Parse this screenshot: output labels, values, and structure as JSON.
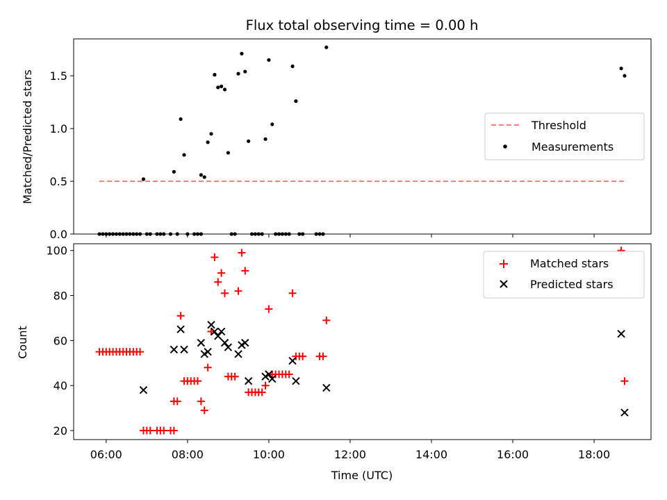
{
  "chart_data": [
    {
      "type": "scatter",
      "title": "Flux total observing time = 0.00 h",
      "xlabel": "",
      "ylabel": "Matched/Predicted stars",
      "xlim": [
        "05:12",
        "19:24"
      ],
      "ylim": [
        0,
        1.85
      ],
      "xticks": [
        "06:00",
        "08:00",
        "10:00",
        "12:00",
        "14:00",
        "16:00",
        "18:00"
      ],
      "yticks": [
        0.0,
        0.5,
        1.0,
        1.5
      ],
      "ytick_labels": [
        "0.0",
        "0.5",
        "1.0",
        "1.5"
      ],
      "legend_position": "center-right",
      "threshold": {
        "name": "Threshold",
        "value": 0.5,
        "x_range": [
          "05:50",
          "18:45"
        ],
        "color": "#ff7f7f",
        "style": "dashed"
      },
      "series": [
        {
          "name": "Measurements",
          "color": "#000000",
          "marker": "dot",
          "points": [
            [
              "06:55",
              0.52
            ],
            [
              "07:40",
              0.59
            ],
            [
              "07:50",
              1.09
            ],
            [
              "07:55",
              0.75
            ],
            [
              "08:20",
              0.56
            ],
            [
              "08:25",
              0.54
            ],
            [
              "08:30",
              0.87
            ],
            [
              "08:35",
              0.95
            ],
            [
              "08:40",
              1.51
            ],
            [
              "08:45",
              1.39
            ],
            [
              "08:50",
              1.4
            ],
            [
              "08:55",
              1.37
            ],
            [
              "09:00",
              0.77
            ],
            [
              "09:15",
              1.52
            ],
            [
              "09:20",
              1.71
            ],
            [
              "09:25",
              1.54
            ],
            [
              "09:30",
              0.88
            ],
            [
              "09:55",
              0.9
            ],
            [
              "10:00",
              1.65
            ],
            [
              "10:05",
              1.04
            ],
            [
              "10:35",
              1.59
            ],
            [
              "10:40",
              1.26
            ],
            [
              "11:25",
              1.77
            ],
            [
              "18:40",
              1.57
            ],
            [
              "18:45",
              1.5
            ],
            [
              "05:50",
              0
            ],
            [
              "05:55",
              0
            ],
            [
              "06:00",
              0
            ],
            [
              "06:05",
              0
            ],
            [
              "06:10",
              0
            ],
            [
              "06:15",
              0
            ],
            [
              "06:20",
              0
            ],
            [
              "06:25",
              0
            ],
            [
              "06:30",
              0
            ],
            [
              "06:35",
              0
            ],
            [
              "06:40",
              0
            ],
            [
              "06:45",
              0
            ],
            [
              "06:50",
              0
            ],
            [
              "07:00",
              0
            ],
            [
              "07:05",
              0
            ],
            [
              "07:15",
              0
            ],
            [
              "07:20",
              0
            ],
            [
              "07:25",
              0
            ],
            [
              "07:35",
              0
            ],
            [
              "07:45",
              0
            ],
            [
              "08:00",
              0
            ],
            [
              "08:10",
              0
            ],
            [
              "08:15",
              0
            ],
            [
              "08:20",
              0
            ],
            [
              "09:05",
              0
            ],
            [
              "09:10",
              0
            ],
            [
              "09:35",
              0
            ],
            [
              "09:40",
              0
            ],
            [
              "09:45",
              0
            ],
            [
              "09:50",
              0
            ],
            [
              "10:10",
              0
            ],
            [
              "10:15",
              0
            ],
            [
              "10:20",
              0
            ],
            [
              "10:25",
              0
            ],
            [
              "10:30",
              0
            ],
            [
              "10:45",
              0
            ],
            [
              "10:50",
              0
            ],
            [
              "11:10",
              0
            ],
            [
              "11:15",
              0
            ],
            [
              "11:20",
              0
            ]
          ]
        }
      ]
    },
    {
      "type": "scatter",
      "title": "",
      "xlabel": "Time (UTC)",
      "ylabel": "Count",
      "xlim": [
        "05:12",
        "19:24"
      ],
      "ylim": [
        16,
        103
      ],
      "xticks": [
        "06:00",
        "08:00",
        "10:00",
        "12:00",
        "14:00",
        "16:00",
        "18:00"
      ],
      "yticks": [
        20,
        40,
        60,
        80,
        100
      ],
      "ytick_labels": [
        "20",
        "40",
        "60",
        "80",
        "100"
      ],
      "legend_position": "top-right",
      "series": [
        {
          "name": "Matched stars",
          "color": "#ff0000",
          "marker": "plus",
          "points": [
            [
              "05:50",
              55
            ],
            [
              "05:55",
              55
            ],
            [
              "06:00",
              55
            ],
            [
              "06:05",
              55
            ],
            [
              "06:10",
              55
            ],
            [
              "06:15",
              55
            ],
            [
              "06:20",
              55
            ],
            [
              "06:25",
              55
            ],
            [
              "06:30",
              55
            ],
            [
              "06:35",
              55
            ],
            [
              "06:40",
              55
            ],
            [
              "06:45",
              55
            ],
            [
              "06:50",
              55
            ],
            [
              "06:55",
              20
            ],
            [
              "07:00",
              20
            ],
            [
              "07:05",
              20
            ],
            [
              "07:15",
              20
            ],
            [
              "07:20",
              20
            ],
            [
              "07:25",
              20
            ],
            [
              "07:35",
              20
            ],
            [
              "07:40",
              20
            ],
            [
              "07:40",
              33
            ],
            [
              "07:45",
              33
            ],
            [
              "07:50",
              71
            ],
            [
              "07:55",
              42
            ],
            [
              "08:00",
              42
            ],
            [
              "08:05",
              42
            ],
            [
              "08:10",
              42
            ],
            [
              "08:15",
              42
            ],
            [
              "08:20",
              33
            ],
            [
              "08:25",
              29
            ],
            [
              "08:30",
              48
            ],
            [
              "08:35",
              64
            ],
            [
              "08:40",
              97
            ],
            [
              "08:45",
              86
            ],
            [
              "08:50",
              90
            ],
            [
              "08:55",
              81
            ],
            [
              "09:00",
              44
            ],
            [
              "09:05",
              44
            ],
            [
              "09:10",
              44
            ],
            [
              "09:15",
              82
            ],
            [
              "09:20",
              99
            ],
            [
              "09:25",
              91
            ],
            [
              "09:30",
              37
            ],
            [
              "09:35",
              37
            ],
            [
              "09:40",
              37
            ],
            [
              "09:45",
              37
            ],
            [
              "09:50",
              37
            ],
            [
              "09:55",
              40
            ],
            [
              "10:00",
              74
            ],
            [
              "10:05",
              45
            ],
            [
              "10:10",
              45
            ],
            [
              "10:15",
              45
            ],
            [
              "10:20",
              45
            ],
            [
              "10:25",
              45
            ],
            [
              "10:30",
              45
            ],
            [
              "10:35",
              81
            ],
            [
              "10:40",
              53
            ],
            [
              "10:45",
              53
            ],
            [
              "10:50",
              53
            ],
            [
              "11:15",
              53
            ],
            [
              "11:20",
              53
            ],
            [
              "11:25",
              69
            ],
            [
              "18:40",
              100
            ],
            [
              "18:45",
              42
            ]
          ]
        },
        {
          "name": "Predicted stars",
          "color": "#000000",
          "marker": "x",
          "points": [
            [
              "06:55",
              38
            ],
            [
              "07:40",
              56
            ],
            [
              "07:50",
              65
            ],
            [
              "07:55",
              56
            ],
            [
              "08:20",
              59
            ],
            [
              "08:25",
              54
            ],
            [
              "08:30",
              55
            ],
            [
              "08:35",
              67
            ],
            [
              "08:40",
              64
            ],
            [
              "08:45",
              62
            ],
            [
              "08:50",
              64
            ],
            [
              "08:55",
              59
            ],
            [
              "09:00",
              57
            ],
            [
              "09:15",
              54
            ],
            [
              "09:20",
              58
            ],
            [
              "09:25",
              59
            ],
            [
              "09:30",
              42
            ],
            [
              "09:55",
              44
            ],
            [
              "10:00",
              45
            ],
            [
              "10:05",
              43
            ],
            [
              "10:35",
              51
            ],
            [
              "10:40",
              42
            ],
            [
              "11:25",
              39
            ],
            [
              "18:40",
              63
            ],
            [
              "18:45",
              28
            ]
          ]
        }
      ]
    }
  ]
}
